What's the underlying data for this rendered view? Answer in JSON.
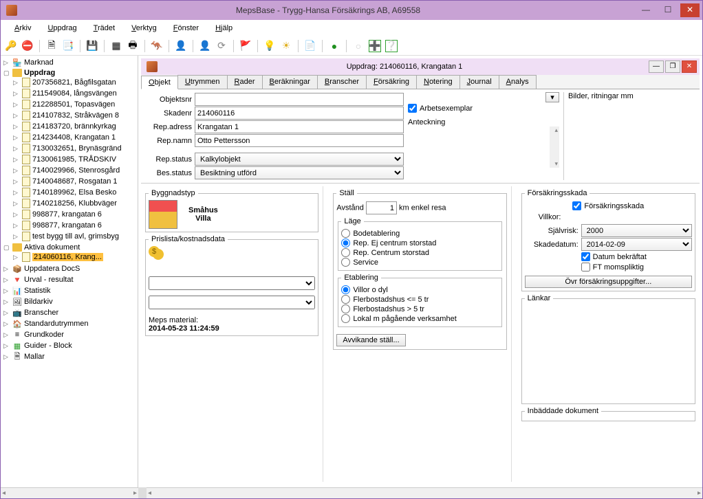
{
  "window": {
    "title": "MepsBase - Trygg-Hansa Försäkrings AB, A69558"
  },
  "menubar": {
    "arkiv": "Arkiv",
    "uppdrag": "Uppdrag",
    "tradet": "Trädet",
    "verktyg": "Verktyg",
    "fonster": "Fönster",
    "hjalp": "Hjälp"
  },
  "toolbar_icons": {
    "key": "🔑",
    "forbid": "⛔",
    "new": "🗎",
    "copy": "📑",
    "save": "💾",
    "grid": "▦",
    "print": "🖶",
    "run": "🦘",
    "user": "👤",
    "refresh": "⟳",
    "flag": "🚩",
    "bulb": "💡",
    "sun": "☀",
    "doc": "📄",
    "leaf": "●",
    "drop": "○",
    "plus": "➕",
    "help": "❔"
  },
  "tree": {
    "marknad": "Marknad",
    "uppdrag": "Uppdrag",
    "uppdrag_items": [
      "207356821, Bågfilsgatan ",
      "211549084, långsvängen",
      "212288501, Topasvägen",
      "214107832, Stråkvägen 8",
      "214183720, brännkyrkag",
      "214234408, Krangatan 1",
      "7130032651, Brynäsgränd",
      "7130061985, TRÅDSKIV",
      "7140029966, Stenrosgård",
      "7140048687, Rosgatan 1",
      "7140189962, Elsa Besko",
      "7140218256, Klubbväger",
      "998877, krangatan 6",
      "998877, krangatan 6",
      "test bygg till avl, grimsbyg"
    ],
    "aktiva": "Aktiva dokument",
    "aktiva_selected": "214060116, Krang...",
    "other_nodes": {
      "uppdateradocs": "Uppdatera DocS",
      "urval": "Urval - resultat",
      "statistik": "Statistik",
      "bildarkiv": "Bildarkiv",
      "branscher": "Branscher",
      "standardutrymmen": "Standardutrymmen",
      "grundkoder": "Grundkoder",
      "guider": "Guider - Block",
      "mallar": "Mallar"
    }
  },
  "mdi": {
    "title": "Uppdrag: 214060116, Krangatan 1"
  },
  "tabs": {
    "objekt": "Objekt",
    "utrymmen": "Utrymmen",
    "rader": "Rader",
    "berakningar": "Beräkningar",
    "branscher": "Branscher",
    "forsakring": "Försäkring",
    "notering": "Notering",
    "journal": "Journal",
    "analys": "Analys"
  },
  "top": {
    "objektsnr_label": "Objektsnr",
    "objektsnr": "",
    "skadenr_label": "Skadenr",
    "skadenr": "214060116",
    "repadress_label": "Rep.adress",
    "repadress": "Krangatan 1",
    "repnamn_label": "Rep.namn",
    "repnamn": "Otto Pettersson",
    "repstatus_label": "Rep.status",
    "repstatus": "Kalkylobjekt",
    "besstatus_label": "Bes.status",
    "besstatus": "Besiktning utförd",
    "arbetsexemplar": "Arbetsexemplar",
    "anteckning": "Anteckning",
    "bilder": "Bilder, ritningar mm"
  },
  "byggnad": {
    "legend": "Byggnadstyp",
    "smahus": "Småhus",
    "villa": "Villa",
    "prislista_legend": "Prislista/kostnadsdata",
    "meps_label": "Meps material:",
    "meps_ts": "2014-05-23 11:24:59"
  },
  "stall": {
    "legend": "Ställ",
    "avstand_label": "Avstånd",
    "avstand_val": "1",
    "avstand_suffix": "km enkel resa",
    "lage_legend": "Läge",
    "lage_opts": [
      "Bodetablering",
      "Rep. Ej centrum storstad",
      "Rep. Centrum storstad",
      "Service"
    ],
    "etablering_legend": "Etablering",
    "etablering_opts": [
      "Villor o dyl",
      "Flerbostadshus <= 5 tr",
      "Flerbostadshus > 5 tr",
      "Lokal m pågående verksamhet"
    ],
    "avvikande_btn": "Avvikande ställ..."
  },
  "forsakring": {
    "legend": "Försäkringsskada",
    "chk": "Försäkringsskada",
    "villkor": "Villkor:",
    "sjalvrisk_label": "Självrisk:",
    "sjalvrisk_val": "2000",
    "skadedatum_label": "Skadedatum:",
    "skadedatum_val": "2014-02-09",
    "datum_chk": "Datum bekräftat",
    "ft_chk": "FT momspliktig",
    "ovr_btn": "Övr försäkringsuppgifter...",
    "lankar_legend": "Länkar",
    "inbaddade_legend": "Inbäddade dokument"
  }
}
